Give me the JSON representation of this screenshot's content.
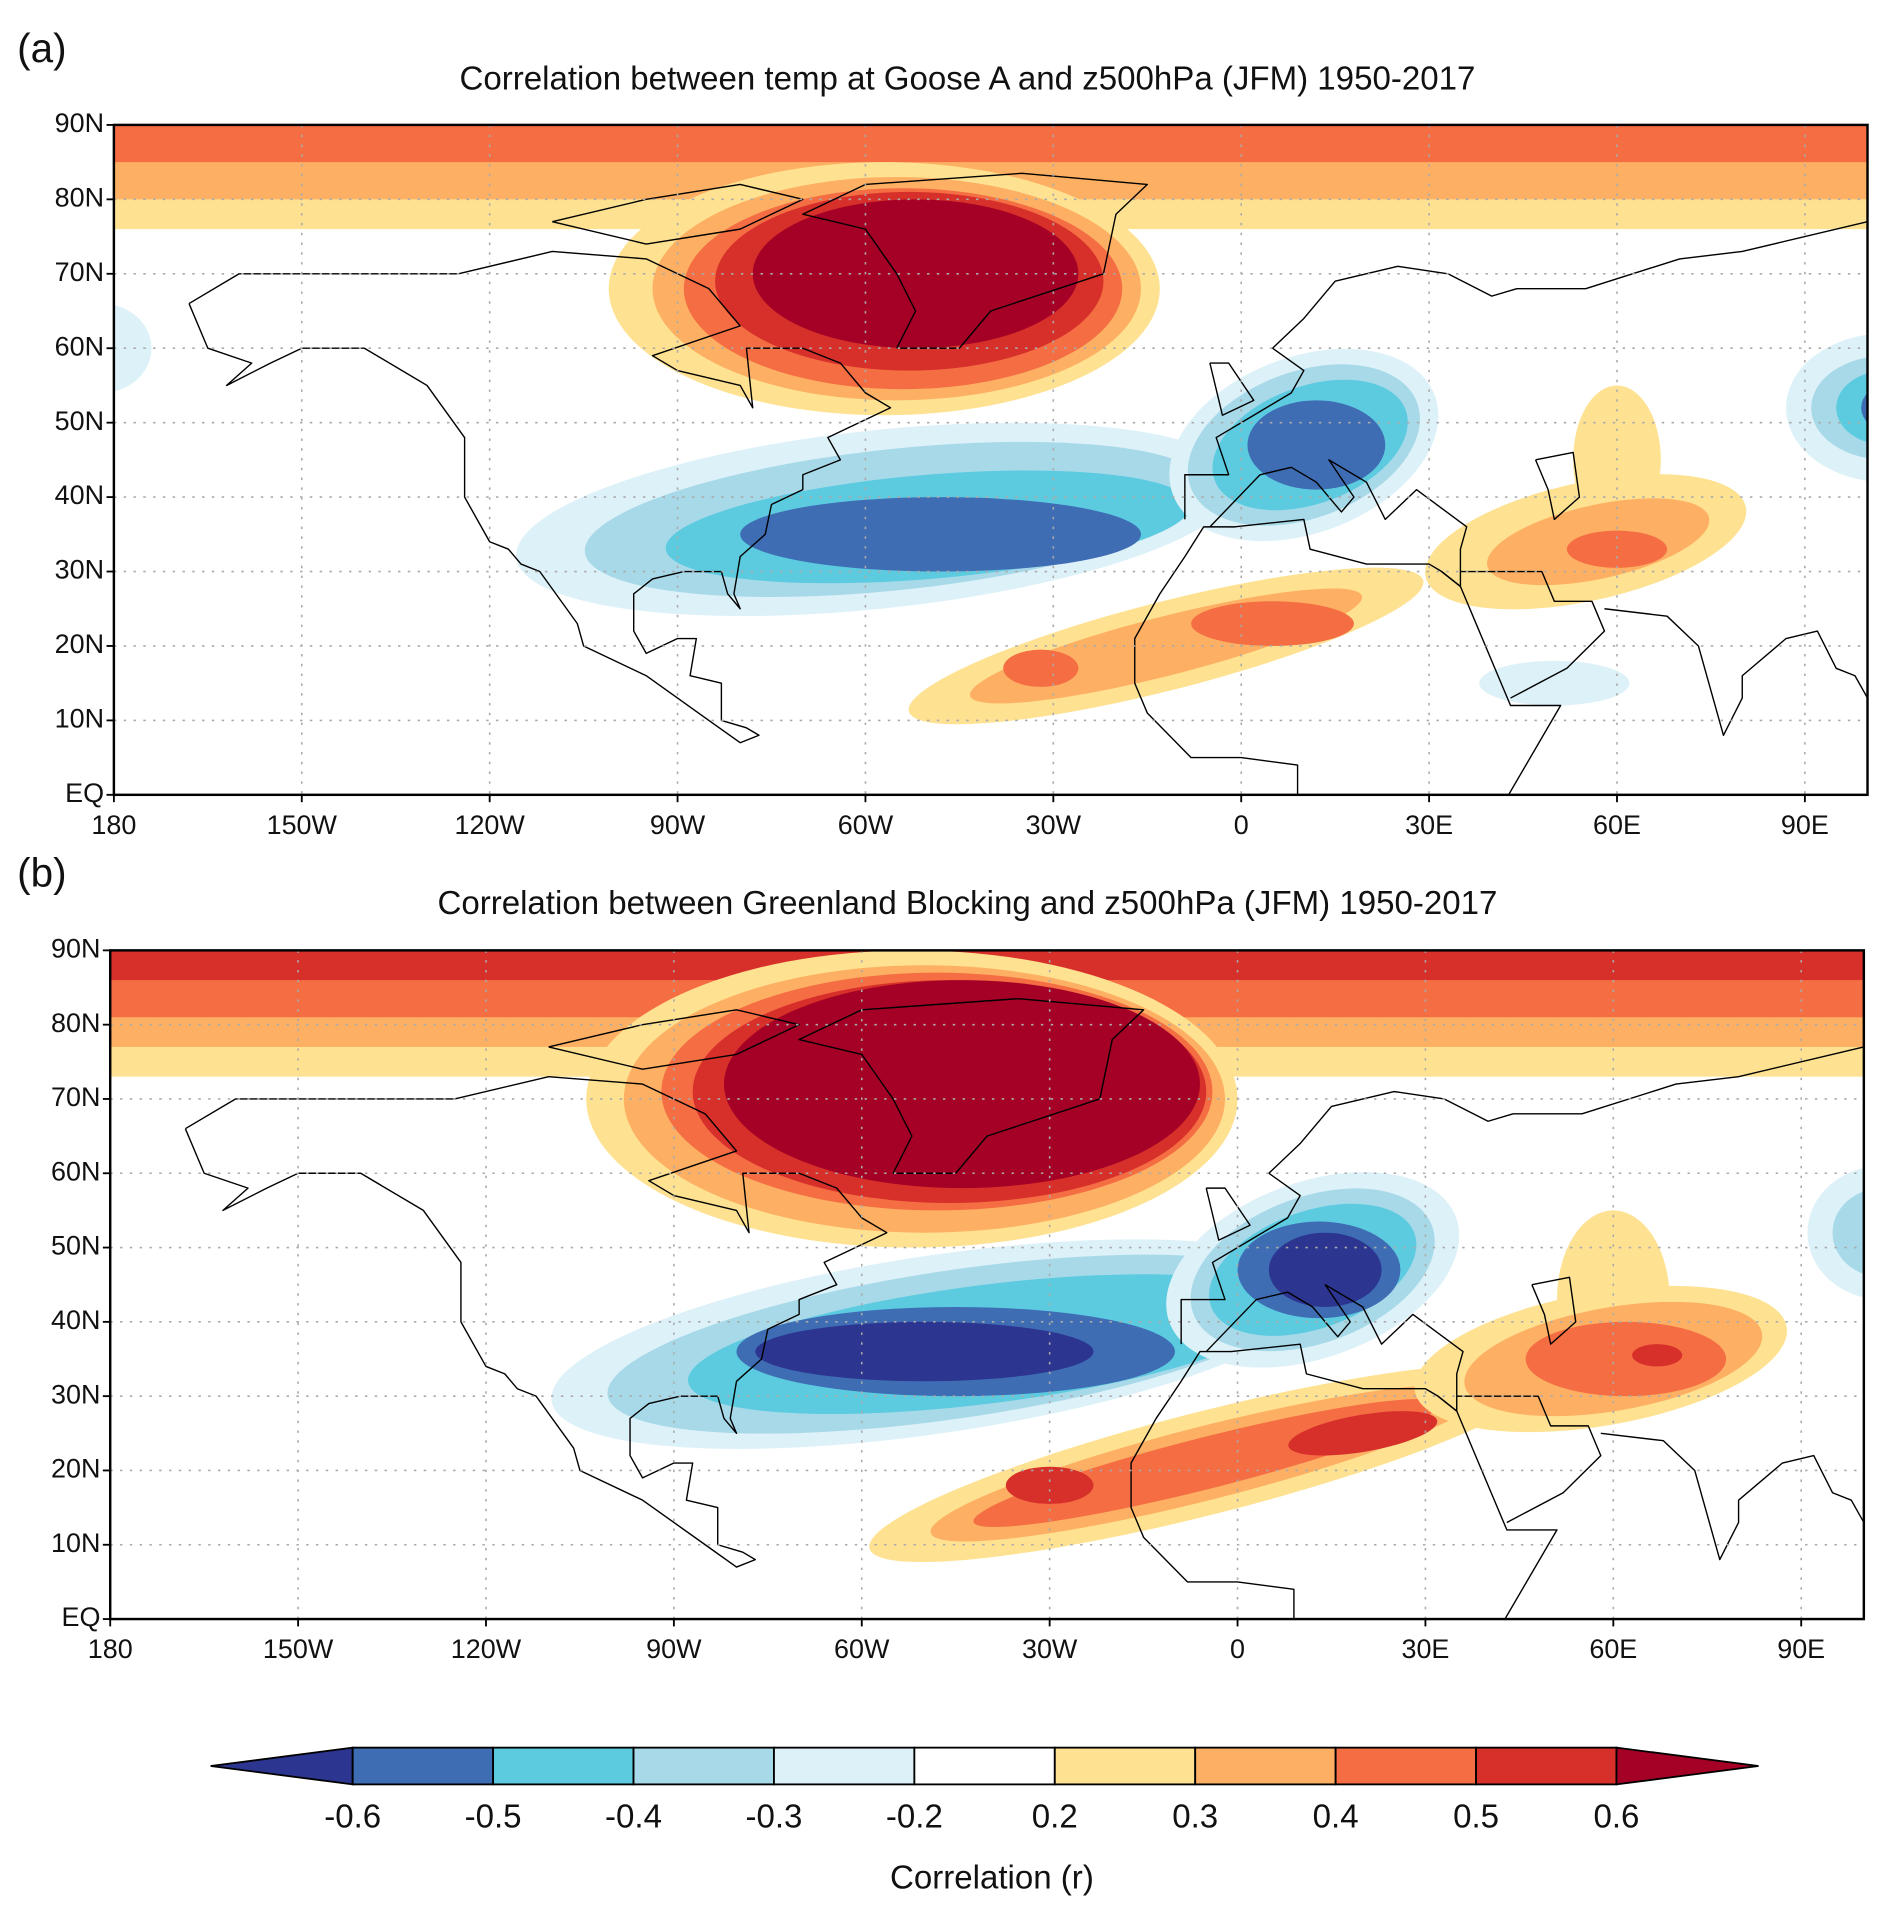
{
  "panels": [
    {
      "label": "(a)",
      "title": "Correlation between temp at Goose A and z500hPa (JFM) 1950-2017"
    },
    {
      "label": "(b)",
      "title": "Correlation between Greenland Blocking and z500hPa (JFM) 1950-2017"
    }
  ],
  "map": {
    "xlim": [
      -180,
      100
    ],
    "ylim": [
      0,
      90
    ],
    "grid": true,
    "xticks": [
      {
        "value": -180,
        "label": "180"
      },
      {
        "value": -150,
        "label": "150W"
      },
      {
        "value": -120,
        "label": "120W"
      },
      {
        "value": -90,
        "label": "90W"
      },
      {
        "value": -60,
        "label": "60W"
      },
      {
        "value": -30,
        "label": "30W"
      },
      0,
      {
        "value": 30,
        "label": "30E"
      },
      {
        "value": 60,
        "label": "60E"
      },
      {
        "value": 90,
        "label": "90E"
      }
    ],
    "yticks": [
      {
        "value": 0,
        "label": "EQ"
      },
      {
        "value": 10,
        "label": "10N"
      },
      {
        "value": 20,
        "label": "20N"
      },
      {
        "value": 30,
        "label": "30N"
      },
      {
        "value": 40,
        "label": "40N"
      },
      {
        "value": 50,
        "label": "50N"
      },
      {
        "value": 60,
        "label": "60N"
      },
      {
        "value": 70,
        "label": "70N"
      },
      {
        "value": 80,
        "label": "80N"
      },
      {
        "value": 90,
        "label": "90N"
      }
    ]
  },
  "colorbar": {
    "ticks": [
      -0.6,
      -0.5,
      -0.4,
      -0.3,
      -0.2,
      0.2,
      0.3,
      0.4,
      0.5,
      0.6
    ],
    "colors": [
      "#2c3590",
      "#3e6db4",
      "#5ccbe0",
      "#a8d9e9",
      "#ddf1f8",
      "#ffffff",
      "#fee292",
      "#fdb063",
      "#f46d43",
      "#d7302a",
      "#a50026"
    ],
    "label": "Correlation (r)"
  }
}
